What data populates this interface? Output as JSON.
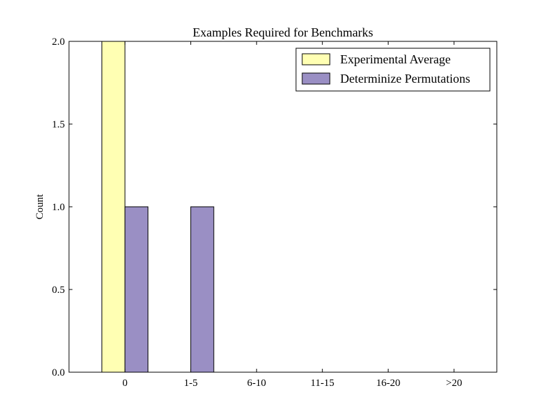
{
  "chart_data": {
    "type": "bar",
    "title": "Examples Required for Benchmarks",
    "xlabel": "",
    "ylabel": "Count",
    "categories": [
      "0",
      "1-5",
      "6-10",
      "11-15",
      "16-20",
      ">20"
    ],
    "series": [
      {
        "name": "Experimental Average",
        "values": [
          2,
          0,
          0,
          0,
          0,
          0
        ],
        "color": "#ffffb3"
      },
      {
        "name": "Determinize Permutations",
        "values": [
          1,
          1,
          0,
          0,
          0,
          0
        ],
        "color": "#9a8fc4"
      }
    ],
    "ylim": [
      0,
      2
    ],
    "yticks": [
      "0.0",
      "0.5",
      "1.0",
      "1.5",
      "2.0"
    ],
    "grid": false,
    "legend_position": "top-right"
  }
}
